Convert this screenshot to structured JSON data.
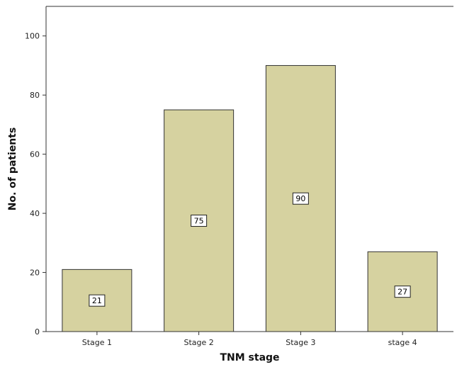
{
  "chart_data": {
    "type": "bar",
    "categories": [
      "Stage 1",
      "Stage 2",
      "Stage 3",
      "stage 4"
    ],
    "values": [
      21,
      75,
      90,
      27
    ],
    "data_labels": [
      "21",
      "75",
      "90",
      "27"
    ],
    "title": "",
    "xlabel": "TNM stage",
    "ylabel": "No. of patients",
    "ylim": [
      0,
      110
    ],
    "yticks": [
      0,
      20,
      40,
      60,
      80,
      100
    ],
    "ytick_labels": [
      "0",
      "20",
      "40",
      "60",
      "80",
      "100"
    ],
    "grid": false,
    "bar_color": "#d6d2a0",
    "bar_edge_color": "#333333"
  }
}
